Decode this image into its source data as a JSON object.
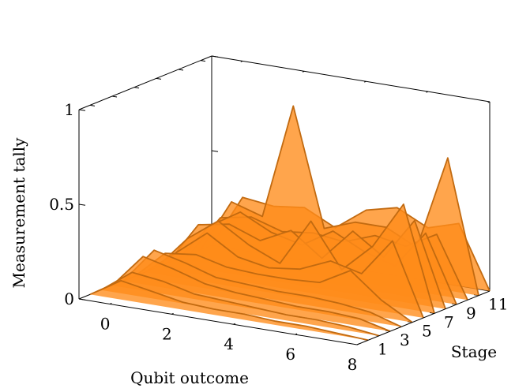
{
  "chart_data": {
    "type": "area",
    "xlabel": "Qubit outcome",
    "ylabel": "Stage",
    "zlabel": "Measurement tally",
    "x_ticks": [
      0,
      2,
      4,
      6,
      8
    ],
    "y_ticks": [
      1,
      3,
      5,
      7,
      9,
      11
    ],
    "z_ticks": [
      0,
      0.5,
      1
    ],
    "x_labels": [
      "0",
      "2",
      "4",
      "6",
      "8"
    ],
    "y_labels": [
      "1",
      "3",
      "5",
      "7",
      "9",
      "11"
    ],
    "z_labels": [
      "0",
      "0.5",
      "1"
    ],
    "xlim": [
      -1,
      8
    ],
    "ylim": [
      0,
      12
    ],
    "zlim": [
      0,
      1
    ],
    "x": [
      -1,
      0,
      1,
      2,
      3,
      4,
      5,
      6,
      7,
      8
    ],
    "series": [
      {
        "stage": 1,
        "values": [
          0,
          0.1,
          0.07,
          0.04,
          0.03,
          0.03,
          0.02,
          0.02,
          0.01,
          0
        ]
      },
      {
        "stage": 2,
        "values": [
          0,
          0.12,
          0.1,
          0.06,
          0.05,
          0.04,
          0.03,
          0.03,
          0.02,
          0
        ]
      },
      {
        "stage": 3,
        "values": [
          0,
          0.18,
          0.14,
          0.09,
          0.07,
          0.06,
          0.05,
          0.05,
          0.04,
          0
        ]
      },
      {
        "stage": 4,
        "values": [
          0,
          0.19,
          0.15,
          0.1,
          0.09,
          0.08,
          0.08,
          0.07,
          0.05,
          0
        ]
      },
      {
        "stage": 5,
        "values": [
          0,
          0.15,
          0.17,
          0.13,
          0.12,
          0.12,
          0.13,
          0.22,
          0.09,
          0
        ]
      },
      {
        "stage": 6,
        "values": [
          0,
          0.13,
          0.26,
          0.16,
          0.13,
          0.15,
          0.22,
          0.18,
          0.38,
          0
        ]
      },
      {
        "stage": 7,
        "values": [
          0,
          0.18,
          0.3,
          0.2,
          0.13,
          0.38,
          0.15,
          0.3,
          0.55,
          0
        ]
      },
      {
        "stage": 8,
        "values": [
          0,
          0.23,
          0.26,
          0.2,
          0.28,
          0.16,
          0.33,
          0.22,
          0.44,
          0
        ]
      },
      {
        "stage": 9,
        "values": [
          0,
          0.2,
          0.3,
          0.22,
          0.18,
          0.28,
          0.2,
          0.15,
          0.35,
          0
        ]
      },
      {
        "stage": 10,
        "values": [
          0,
          0.22,
          0.25,
          0.2,
          0.22,
          0.2,
          0.26,
          0.23,
          0.32,
          0
        ]
      },
      {
        "stage": 11,
        "values": [
          0,
          0.28,
          0.23,
          0.84,
          0.22,
          0.28,
          0.28,
          0.2,
          0.7,
          0
        ]
      },
      {
        "stage": 12,
        "values": [
          0,
          0.28,
          0.26,
          0.28,
          0.2,
          0.32,
          0.36,
          0.28,
          0.33,
          0
        ]
      }
    ],
    "color": "#ff8c1a",
    "edge_color": "#c26a10",
    "grid": false
  }
}
